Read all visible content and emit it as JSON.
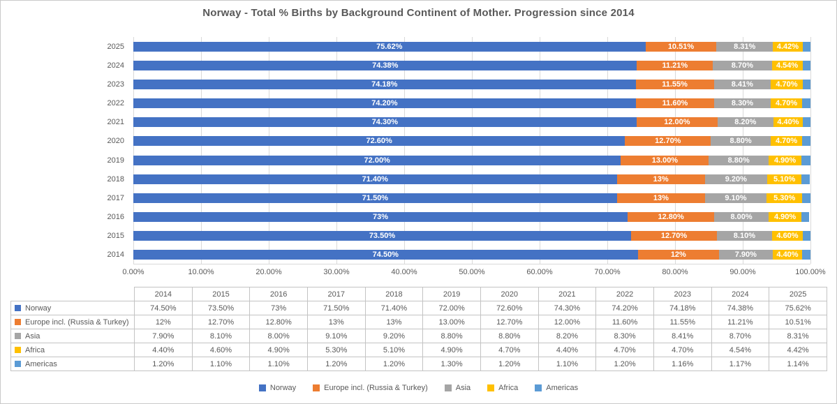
{
  "chart_data": {
    "type": "bar",
    "orientation": "horizontal",
    "stacked": true,
    "title": "Norway - Total % Births by Background Continent of Mother. Progression since 2014",
    "categories": [
      "2014",
      "2015",
      "2016",
      "2017",
      "2018",
      "2019",
      "2020",
      "2021",
      "2022",
      "2023",
      "2024",
      "2025"
    ],
    "category_order_top_to_bottom": [
      "2025",
      "2024",
      "2023",
      "2022",
      "2021",
      "2020",
      "2019",
      "2018",
      "2017",
      "2016",
      "2015",
      "2014"
    ],
    "series": [
      {
        "name": "Norway",
        "color": "#4472C4",
        "show_labels": true,
        "values": [
          74.5,
          73.5,
          73,
          71.5,
          71.4,
          72,
          72.6,
          74.3,
          74.2,
          74.18,
          74.38,
          75.62
        ],
        "labels": [
          "74.50%",
          "73.50%",
          "73%",
          "71.50%",
          "71.40%",
          "72.00%",
          "72.60%",
          "74.30%",
          "74.20%",
          "74.18%",
          "74.38%",
          "75.62%"
        ]
      },
      {
        "name": "Europe incl. (Russia & Turkey)",
        "color": "#ED7D31",
        "show_labels": true,
        "values": [
          12,
          12.7,
          12.8,
          13,
          13,
          13,
          12.7,
          12,
          11.6,
          11.55,
          11.21,
          10.51
        ],
        "labels": [
          "12%",
          "12.70%",
          "12.80%",
          "13%",
          "13%",
          "13.00%",
          "12.70%",
          "12.00%",
          "11.60%",
          "11.55%",
          "11.21%",
          "10.51%"
        ]
      },
      {
        "name": "Asia",
        "color": "#A5A5A5",
        "show_labels": true,
        "values": [
          7.9,
          8.1,
          8,
          9.1,
          9.2,
          8.8,
          8.8,
          8.2,
          8.3,
          8.41,
          8.7,
          8.31
        ],
        "labels": [
          "7.90%",
          "8.10%",
          "8.00%",
          "9.10%",
          "9.20%",
          "8.80%",
          "8.80%",
          "8.20%",
          "8.30%",
          "8.41%",
          "8.70%",
          "8.31%"
        ]
      },
      {
        "name": "Africa",
        "color": "#FFC000",
        "show_labels": true,
        "values": [
          4.4,
          4.6,
          4.9,
          5.3,
          5.1,
          4.9,
          4.7,
          4.4,
          4.7,
          4.7,
          4.54,
          4.42
        ],
        "labels": [
          "4.40%",
          "4.60%",
          "4.90%",
          "5.30%",
          "5.10%",
          "4.90%",
          "4.70%",
          "4.40%",
          "4.70%",
          "4.70%",
          "4.54%",
          "4.42%"
        ]
      },
      {
        "name": "Americas",
        "color": "#5B9BD5",
        "show_labels": false,
        "values": [
          1.2,
          1.1,
          1.1,
          1.2,
          1.2,
          1.3,
          1.2,
          1.1,
          1.2,
          1.16,
          1.17,
          1.14
        ],
        "labels": [
          "1.20%",
          "1.10%",
          "1.10%",
          "1.20%",
          "1.20%",
          "1.30%",
          "1.20%",
          "1.10%",
          "1.20%",
          "1.16%",
          "1.17%",
          "1.14%"
        ]
      }
    ],
    "x_ticks": [
      "0.00%",
      "10.00%",
      "20.00%",
      "30.00%",
      "40.00%",
      "50.00%",
      "60.00%",
      "70.00%",
      "80.00%",
      "90.00%",
      "100.00%"
    ],
    "xlim": [
      0,
      100
    ],
    "grid": true,
    "legend_position": "bottom",
    "table_shown": true,
    "colors": {
      "norway": "#4472C4",
      "europe": "#ED7D31",
      "asia": "#A5A5A5",
      "africa": "#FFC000",
      "americas": "#5B9BD5",
      "text": "#595959",
      "gridline": "#D9D9D9",
      "table_border": "#C3C3C3"
    }
  }
}
